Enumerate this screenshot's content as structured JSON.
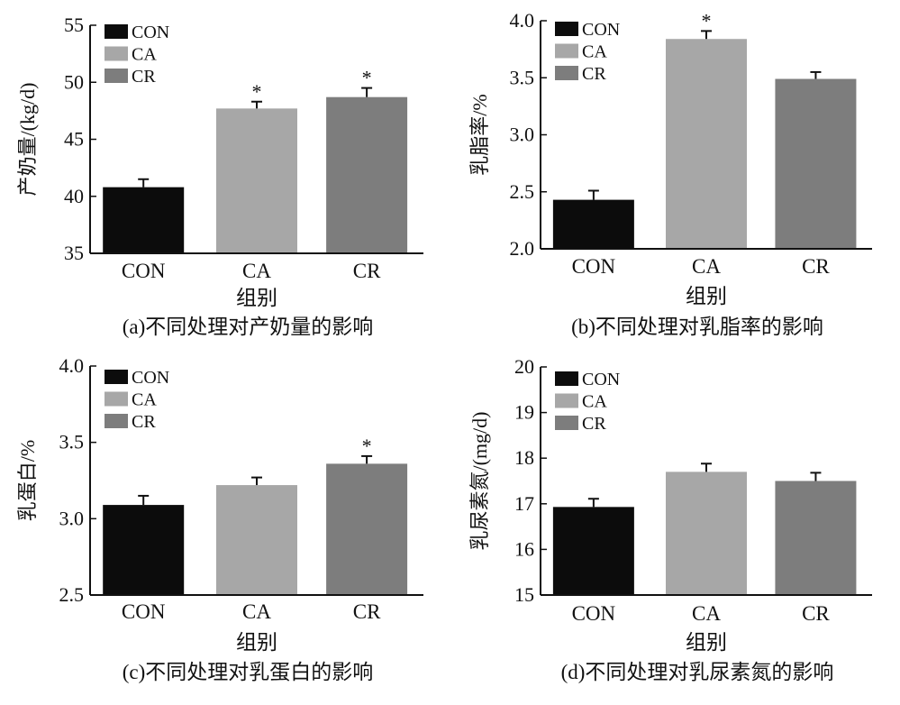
{
  "panels": [
    {
      "id": "a",
      "chart_data": {
        "type": "bar",
        "categories": [
          "CON",
          "CA",
          "CR"
        ],
        "values": [
          40.8,
          47.7,
          48.7
        ],
        "errors": [
          0.7,
          0.6,
          0.8
        ],
        "significance": [
          "",
          "*",
          "*"
        ],
        "ylim": [
          35,
          55
        ],
        "yticks": [
          35,
          40,
          45,
          50,
          55
        ],
        "ylabel": "产奶量/(kg/d)",
        "xlabel": "组别",
        "caption": "(a)不同处理对产奶量的影响",
        "legend": [
          "CON",
          "CA",
          "CR"
        ],
        "xlabel_shown": true
      }
    },
    {
      "id": "b",
      "chart_data": {
        "type": "bar",
        "categories": [
          "CON",
          "CA",
          "CR"
        ],
        "values": [
          2.43,
          3.84,
          3.49
        ],
        "errors": [
          0.08,
          0.07,
          0.06
        ],
        "significance": [
          "",
          "*",
          ""
        ],
        "ylim": [
          2.0,
          4.0
        ],
        "yticks": [
          "2.0",
          "2.5",
          "3.0",
          "3.5",
          "4.0"
        ],
        "ylabel": "乳脂率/%",
        "xlabel": "组别",
        "caption": "(b)不同处理对乳脂率的影响",
        "legend": [
          "CON",
          "CA",
          "CR"
        ],
        "xlabel_shown": true
      }
    },
    {
      "id": "c",
      "chart_data": {
        "type": "bar",
        "categories": [
          "CON",
          "CA",
          "CR"
        ],
        "values": [
          3.09,
          3.22,
          3.36
        ],
        "errors": [
          0.06,
          0.05,
          0.05
        ],
        "significance": [
          "",
          "",
          "*"
        ],
        "ylim": [
          2.5,
          4.0
        ],
        "yticks": [
          "2.5",
          "3.0",
          "3.5",
          "4.0"
        ],
        "ylabel": "乳蛋白/%",
        "xlabel": "组别",
        "caption": "(c)不同处理对乳蛋白的影响",
        "legend": [
          "CON",
          "CA",
          "CR"
        ],
        "xlabel_shown": true
      }
    },
    {
      "id": "d",
      "chart_data": {
        "type": "bar",
        "categories": [
          "CON",
          "CA",
          "CR"
        ],
        "values": [
          16.93,
          17.7,
          17.5
        ],
        "errors": [
          0.18,
          0.18,
          0.18
        ],
        "significance": [
          "",
          "",
          ""
        ],
        "ylim": [
          15,
          20
        ],
        "yticks": [
          15,
          16,
          17,
          18,
          19,
          20
        ],
        "ylabel": "乳尿素氮/(mg/d)",
        "xlabel": "组别",
        "caption": "(d)不同处理对乳尿素氮的影响",
        "legend": [
          "CON",
          "CA",
          "CR"
        ],
        "xlabel_shown": true
      }
    }
  ],
  "colors": {
    "CON": "#0c0c0c",
    "CA": "#a7a7a7",
    "CR": "#7d7d7d",
    "axis": "#111111"
  }
}
